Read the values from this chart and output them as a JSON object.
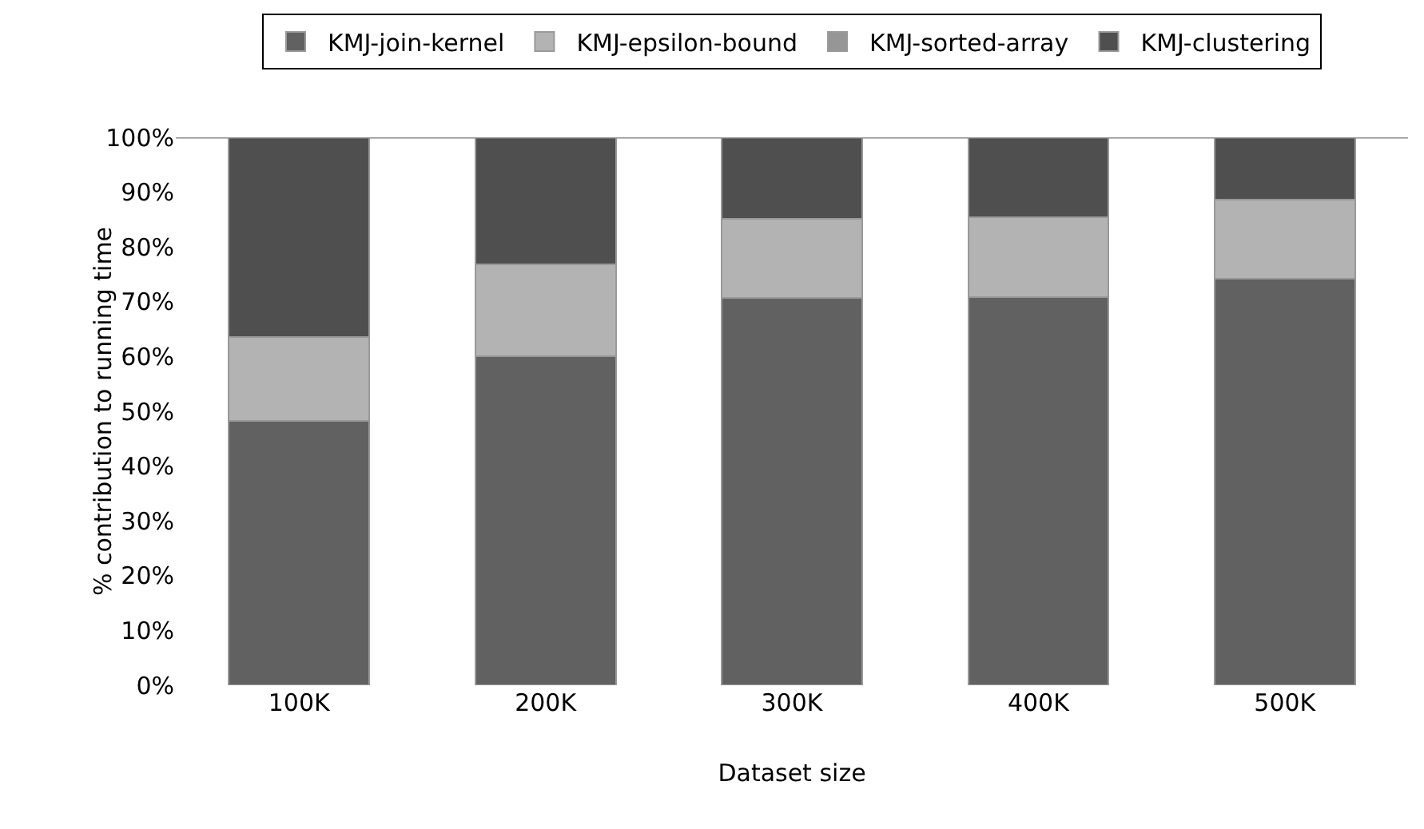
{
  "chart_data": {
    "type": "bar",
    "stacked": true,
    "xlabel": "Dataset size",
    "ylabel": "% contribution to running time",
    "categories": [
      "100K",
      "200K",
      "300K",
      "400K",
      "500K"
    ],
    "series": [
      {
        "name": "KMJ-join-kernel",
        "color": "#616161",
        "values": [
          48.2,
          60.1,
          70.7,
          70.8,
          74.2
        ]
      },
      {
        "name": "KMJ-epsilon-bound",
        "color": "#b3b3b3",
        "values": [
          15.4,
          16.7,
          14.4,
          14.6,
          14.4
        ]
      },
      {
        "name": "KMJ-sorted-array",
        "color": "#969696",
        "values": [
          0,
          0,
          0,
          0,
          0
        ]
      },
      {
        "name": "KMJ-clustering",
        "color": "#4f4f4f",
        "values": [
          36.4,
          23.2,
          14.9,
          14.6,
          11.4
        ]
      }
    ],
    "ylim": [
      0,
      100
    ],
    "yticks": [
      {
        "value": 0,
        "label": "0%"
      },
      {
        "value": 10,
        "label": "10%"
      },
      {
        "value": 20,
        "label": "20%"
      },
      {
        "value": 30,
        "label": "30%"
      },
      {
        "value": 40,
        "label": "40%"
      },
      {
        "value": 50,
        "label": "50%"
      },
      {
        "value": 60,
        "label": "60%"
      },
      {
        "value": 70,
        "label": "70%"
      },
      {
        "value": 80,
        "label": "80%"
      },
      {
        "value": 90,
        "label": "90%"
      },
      {
        "value": 100,
        "label": "100%"
      }
    ],
    "grid": false,
    "legend": "top"
  }
}
